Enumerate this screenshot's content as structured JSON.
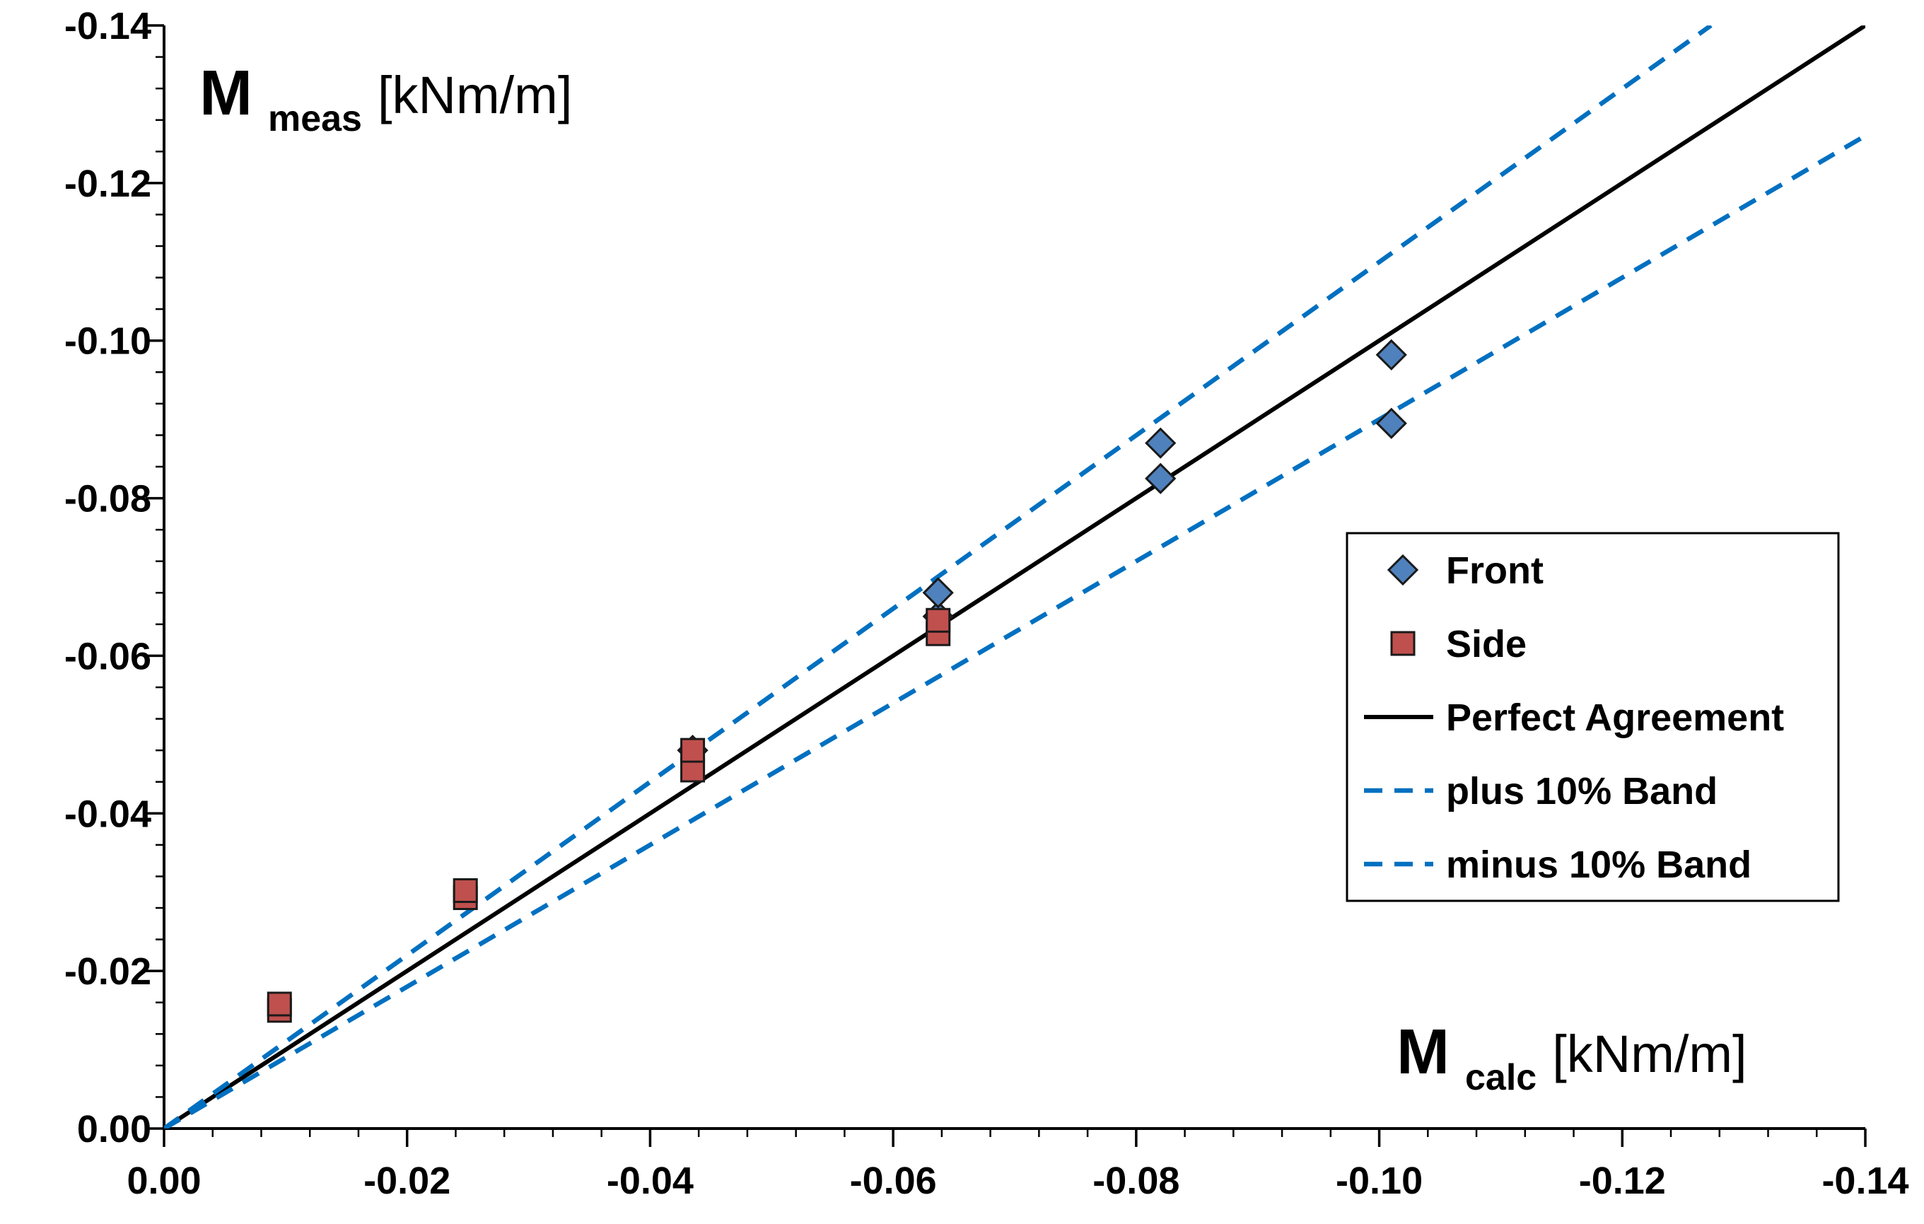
{
  "chart_data": {
    "type": "scatter",
    "x_axis": {
      "label_main": "M",
      "label_sub": "calc",
      "label_unit": "[kNm/m]",
      "range": [
        0.0,
        -0.14
      ],
      "major_ticks": [
        0.0,
        -0.02,
        -0.04,
        -0.06,
        -0.08,
        -0.1,
        -0.12,
        -0.14
      ],
      "tick_labels": [
        "0.00",
        "-0.02",
        "-0.04",
        "-0.06",
        "-0.08",
        "-0.10",
        "-0.12",
        "-0.14"
      ],
      "minor_step": 0.004
    },
    "y_axis": {
      "label_main": "M",
      "label_sub": "meas",
      "label_unit": "[kNm/m]",
      "range": [
        0.0,
        -0.14
      ],
      "major_ticks": [
        0.0,
        -0.02,
        -0.04,
        -0.06,
        -0.08,
        -0.1,
        -0.12,
        -0.14
      ],
      "tick_labels": [
        "0.00",
        "-0.02",
        "-0.04",
        "-0.06",
        "-0.08",
        "-0.10",
        "-0.12",
        "-0.14"
      ],
      "minor_step": 0.004
    },
    "series": [
      {
        "name": "Front",
        "kind": "marker",
        "marker": "diamond",
        "color": "#4F81BD",
        "points": [
          {
            "x": -0.0435,
            "y": -0.048
          },
          {
            "x": -0.0637,
            "y": -0.065
          },
          {
            "x": -0.0637,
            "y": -0.068
          },
          {
            "x": -0.082,
            "y": -0.0825
          },
          {
            "x": -0.082,
            "y": -0.087
          },
          {
            "x": -0.101,
            "y": -0.0895
          },
          {
            "x": -0.101,
            "y": -0.0982
          }
        ]
      },
      {
        "name": "Side",
        "kind": "marker",
        "marker": "square",
        "color": "#C0504D",
        "points": [
          {
            "x": -0.0095,
            "y": -0.015
          },
          {
            "x": -0.0095,
            "y": -0.0158
          },
          {
            "x": -0.0248,
            "y": -0.0293
          },
          {
            "x": -0.0248,
            "y": -0.0302
          },
          {
            "x": -0.0435,
            "y": -0.0455
          },
          {
            "x": -0.0435,
            "y": -0.048
          },
          {
            "x": -0.0637,
            "y": -0.0628
          },
          {
            "x": -0.0637,
            "y": -0.0645
          }
        ]
      },
      {
        "name": "Perfect Agreement",
        "kind": "line",
        "style": "solid",
        "color": "#000000",
        "points": [
          {
            "x": 0.0,
            "y": 0.0
          },
          {
            "x": -0.14,
            "y": -0.14
          }
        ]
      },
      {
        "name": "plus 10% Band",
        "kind": "line",
        "style": "dashed",
        "color": "#0070C0",
        "points": [
          {
            "x": 0.0,
            "y": 0.0
          },
          {
            "x": -0.1273,
            "y": -0.14
          }
        ]
      },
      {
        "name": "minus 10% Band",
        "kind": "line",
        "style": "dashed",
        "color": "#0070C0",
        "points": [
          {
            "x": 0.0,
            "y": 0.0
          },
          {
            "x": -0.14,
            "y": -0.126
          }
        ]
      }
    ],
    "legend": {
      "position": "right-middle",
      "entries": [
        "Front",
        "Side",
        "Perfect Agreement",
        "plus 10% Band",
        "minus 10% Band"
      ]
    },
    "grid": false
  }
}
